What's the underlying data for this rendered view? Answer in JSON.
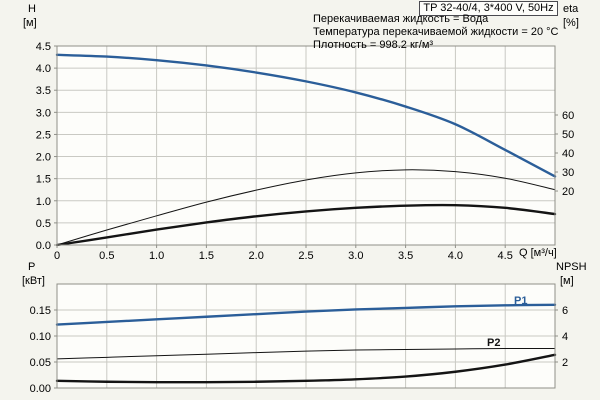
{
  "pump": {
    "model_title": "TP 32-40/4, 3*400 V, 50Hz"
  },
  "info_lines": [
    "Перекачиваемая жидкость = Вода",
    "Температура перекачиваемой жидкости = 20 °C",
    "Плотность = 998.2 кг/м³"
  ],
  "axis_titles": {
    "head": [
      "H",
      "[м]"
    ],
    "eta": [
      "eta",
      "[%]"
    ],
    "power": [
      "P",
      "[кВт]"
    ],
    "npsh": [
      "NPSH",
      "[м]"
    ],
    "flow": "Q [м³/ч]"
  },
  "curve_labels": {
    "p1": "P1",
    "p2": "P2"
  },
  "colors": {
    "curve_blue": "#2b5e99",
    "curve_black": "#141414",
    "grid": "#c9c9c3",
    "frame": "#8f8f88",
    "plot_bg": "#fdfdfa",
    "page_bg": "#f4f4ee",
    "text": "#000000"
  },
  "chart_data": [
    {
      "name": "head-eta-chart",
      "type": "line",
      "title": "TP 32-40/4, 3*400 V, 50Hz",
      "x_axis": {
        "label": "Q [м³/ч]",
        "min": 0,
        "max": 5,
        "ticks": [
          {
            "v": 0,
            "label": "0"
          },
          {
            "v": 0.5,
            "label": "0.5"
          },
          {
            "v": 1,
            "label": "1.0"
          },
          {
            "v": 1.5,
            "label": "1.5"
          },
          {
            "v": 2,
            "label": "2.0"
          },
          {
            "v": 2.5,
            "label": "2.5"
          },
          {
            "v": 3,
            "label": "3.0"
          },
          {
            "v": 3.5,
            "label": "3.5"
          },
          {
            "v": 4,
            "label": "4.0"
          },
          {
            "v": 4.5,
            "label": "4.5"
          }
        ]
      },
      "y_left": {
        "label": "H [м]",
        "min": 0,
        "max": 4.5,
        "ticks": [
          {
            "v": 0,
            "label": "0.0"
          },
          {
            "v": 0.5,
            "label": "0.5"
          },
          {
            "v": 1,
            "label": "1.0"
          },
          {
            "v": 1.5,
            "label": "1.5"
          },
          {
            "v": 2,
            "label": "2.0"
          },
          {
            "v": 2.5,
            "label": "2.5"
          },
          {
            "v": 3,
            "label": "3.0"
          },
          {
            "v": 3.5,
            "label": "3.5"
          },
          {
            "v": 4,
            "label": "4.0"
          },
          {
            "v": 4.5,
            "label": "4.5"
          }
        ]
      },
      "y_right": {
        "label": "eta [%]",
        "min": -8.4,
        "max": 96.3,
        "ticks": [
          {
            "v": 20,
            "label": "20"
          },
          {
            "v": 30,
            "label": "30"
          },
          {
            "v": 40,
            "label": "40"
          },
          {
            "v": 50,
            "label": "50"
          },
          {
            "v": 60,
            "label": "60"
          }
        ]
      },
      "series": [
        {
          "name": "head-curve",
          "color": "curve_blue",
          "width": 2.4,
          "axis": "left",
          "x": [
            0,
            0.5,
            1,
            1.5,
            2,
            2.5,
            3,
            3.5,
            4,
            4.5,
            5
          ],
          "y": [
            4.3,
            4.26,
            4.18,
            4.06,
            3.9,
            3.7,
            3.45,
            3.13,
            2.73,
            2.15,
            1.55
          ]
        },
        {
          "name": "eta-upper-curve",
          "color": "curve_black",
          "width": 1,
          "axis": "left",
          "x": [
            0,
            0.5,
            1,
            1.5,
            2,
            2.5,
            3,
            3.5,
            4,
            4.5,
            5
          ],
          "y": [
            0,
            0.34,
            0.66,
            0.97,
            1.24,
            1.47,
            1.63,
            1.7,
            1.66,
            1.51,
            1.25
          ]
        },
        {
          "name": "eta-lower-curve",
          "color": "curve_black",
          "width": 2.4,
          "axis": "left",
          "x": [
            0,
            0.5,
            1,
            1.5,
            2,
            2.5,
            3,
            3.5,
            4,
            4.5,
            5
          ],
          "y": [
            0,
            0.17,
            0.35,
            0.51,
            0.65,
            0.76,
            0.84,
            0.89,
            0.9,
            0.84,
            0.7
          ]
        }
      ]
    },
    {
      "name": "power-npsh-chart",
      "type": "line",
      "x_axis": {
        "label": "",
        "min": 0,
        "max": 5,
        "ticks": [
          {
            "v": 0,
            "label": ""
          },
          {
            "v": 0.5,
            "label": ""
          },
          {
            "v": 1,
            "label": ""
          },
          {
            "v": 1.5,
            "label": ""
          },
          {
            "v": 2,
            "label": ""
          },
          {
            "v": 2.5,
            "label": ""
          },
          {
            "v": 3,
            "label": ""
          },
          {
            "v": 3.5,
            "label": ""
          },
          {
            "v": 4,
            "label": ""
          },
          {
            "v": 4.5,
            "label": ""
          }
        ]
      },
      "y_left": {
        "label": "P [кВт]",
        "min": 0,
        "max": 0.2,
        "ticks": [
          {
            "v": 0,
            "label": "0.00"
          },
          {
            "v": 0.05,
            "label": "0.05"
          },
          {
            "v": 0.1,
            "label": "0.10"
          },
          {
            "v": 0.15,
            "label": "0.15"
          }
        ]
      },
      "y_right": {
        "label": "NPSH [м]",
        "min": 0,
        "max": 8,
        "ticks": [
          {
            "v": 2,
            "label": "2"
          },
          {
            "v": 4,
            "label": "4"
          },
          {
            "v": 6,
            "label": "6"
          }
        ]
      },
      "series": [
        {
          "name": "p1-power-curve",
          "color": "curve_blue",
          "width": 2.4,
          "axis": "left",
          "x": [
            0,
            0.5,
            1,
            1.5,
            2,
            2.5,
            3,
            3.5,
            4,
            4.5,
            5
          ],
          "y": [
            0.122,
            0.127,
            0.132,
            0.137,
            0.142,
            0.147,
            0.151,
            0.154,
            0.157,
            0.159,
            0.16
          ]
        },
        {
          "name": "p2-power-curve",
          "color": "curve_black",
          "width": 1,
          "axis": "left",
          "x": [
            0,
            0.5,
            1,
            1.5,
            2,
            2.5,
            3,
            3.5,
            4,
            4.5,
            5
          ],
          "y": [
            0.056,
            0.059,
            0.062,
            0.065,
            0.068,
            0.071,
            0.073,
            0.074,
            0.075,
            0.076,
            0.076
          ]
        },
        {
          "name": "npsh-curve",
          "color": "curve_black",
          "width": 2.4,
          "axis": "right",
          "x": [
            0,
            0.5,
            1,
            1.5,
            2,
            2.5,
            3,
            3.5,
            4,
            4.5,
            5
          ],
          "y": [
            0.55,
            0.48,
            0.45,
            0.45,
            0.48,
            0.55,
            0.67,
            0.88,
            1.25,
            1.8,
            2.55
          ]
        }
      ]
    }
  ]
}
